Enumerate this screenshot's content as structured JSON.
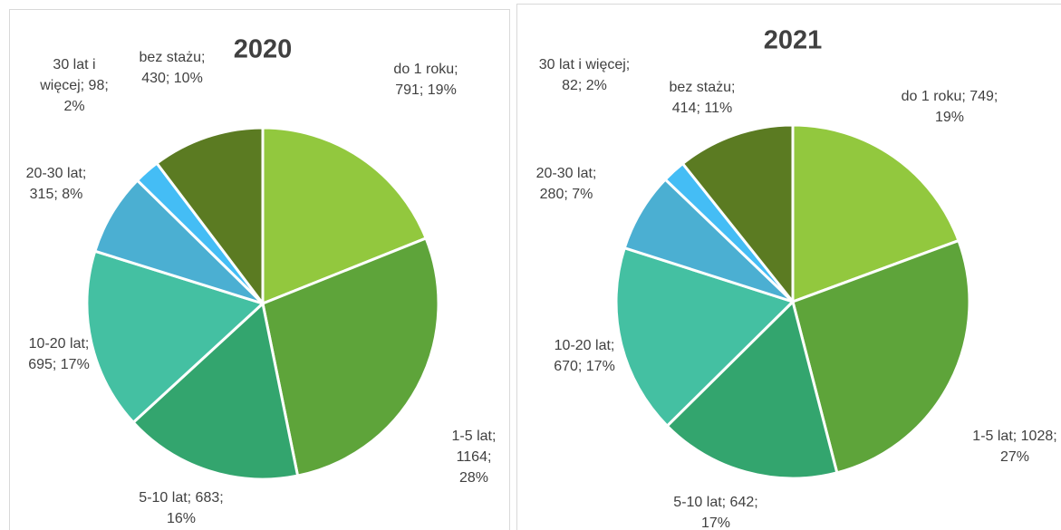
{
  "chart_data": [
    {
      "type": "pie",
      "title": "2020",
      "categories": [
        "do 1 roku",
        "1-5 lat",
        "5-10 lat",
        "10-20 lat",
        "20-30 lat",
        "30 lat i więcej",
        "bez stażu"
      ],
      "values": [
        791,
        1164,
        683,
        695,
        315,
        98,
        430
      ],
      "value_labels": [
        "do 1 roku; 791; 19%",
        "1-5 lat; 1164; 28%",
        "5-10 lat; 683; 16%",
        "10-20 lat; 695; 17%",
        "20-30 lat; 315; 8%",
        "30 lat i więcej; 98; 2%",
        "bez stażu; 430; 10%"
      ],
      "colors": [
        "#92c83e",
        "#5ea43a",
        "#33a56e",
        "#44c0a2",
        "#4bafd2",
        "#44bdf5",
        "#5b7b22"
      ]
    },
    {
      "type": "pie",
      "title": "2021",
      "categories": [
        "do 1 roku",
        "1-5 lat",
        "5-10 lat",
        "10-20 lat",
        "20-30 lat",
        "30 lat i więcej",
        "bez stażu"
      ],
      "values": [
        749,
        1028,
        642,
        670,
        280,
        82,
        414
      ],
      "value_labels": [
        "do 1 roku; 749; 19%",
        "1-5 lat; 1028; 27%",
        "5-10 lat; 642; 17%",
        "10-20 lat; 670; 17%",
        "20-30 lat; 280; 7%",
        "30 lat i więcej; 82; 2%",
        "bez stażu; 414; 11%"
      ],
      "colors": [
        "#92c83e",
        "#5ea43a",
        "#33a56e",
        "#44c0a2",
        "#4bafd2",
        "#44bdf5",
        "#5b7b22"
      ]
    }
  ]
}
